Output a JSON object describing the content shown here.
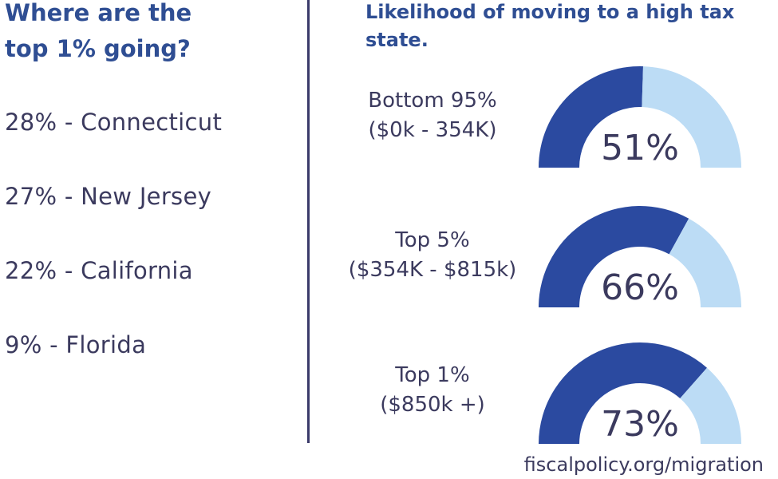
{
  "left": {
    "title_line1": "Where are the",
    "title_line2": "top 1% going?",
    "items": [
      "28% - Connecticut",
      "27% - New Jersey",
      "22% - California",
      "9% - Florida"
    ]
  },
  "chart_data": {
    "type": "gauge",
    "title": "Likelihood of moving to a high tax state.",
    "colors": {
      "filled": "#2b4aa0",
      "remaining": "#bcdcf5",
      "text": "#3b3a5e"
    },
    "gauges": [
      {
        "label": "Bottom 95%",
        "sublabel": "($0k - 354K)",
        "value": 51,
        "value_label": "51%"
      },
      {
        "label": "Top 5%",
        "sublabel": "($354K - $815k)",
        "value": 66,
        "value_label": "66%"
      },
      {
        "label": "Top 1%",
        "sublabel": "($850k +)",
        "value": 73,
        "value_label": "73%"
      }
    ]
  },
  "source": "fiscalpolicy.org/migration"
}
